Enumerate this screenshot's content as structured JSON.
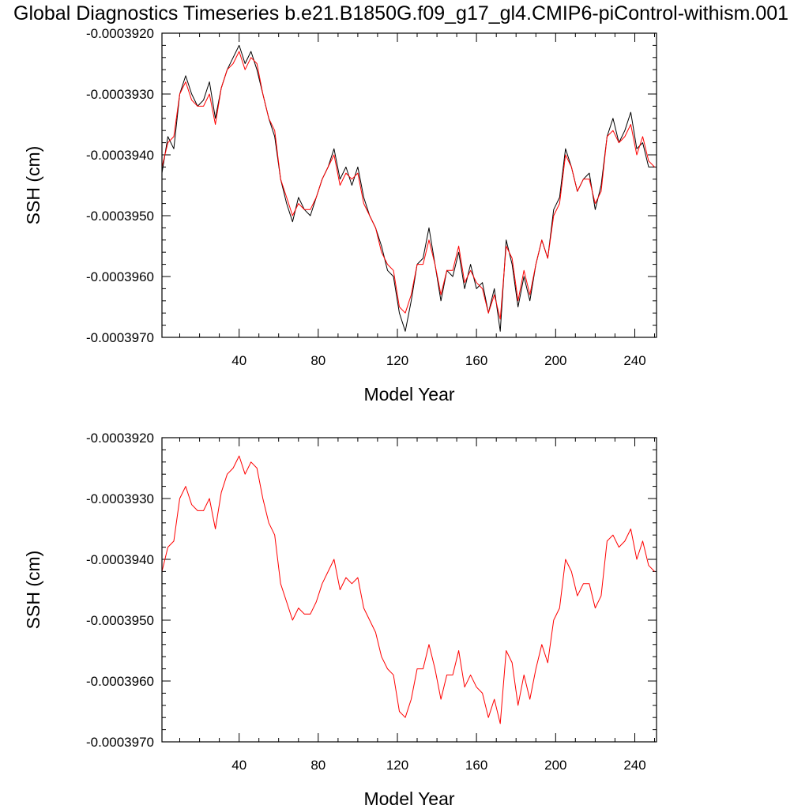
{
  "title": "Global Diagnostics Timeseries b.e21.B1850G.f09_g17_gl4.CMIP6-piControl-withism.001",
  "chart_data": [
    {
      "type": "line",
      "xlabel": "Model Year",
      "ylabel": "SSH (cm)",
      "xlim": [
        1,
        251
      ],
      "ylim": [
        -0.000397,
        -0.000392
      ],
      "xticks": [
        40,
        80,
        120,
        160,
        200,
        240
      ],
      "xtick_labels": [
        "40",
        "80",
        "120",
        "160",
        "200",
        "240"
      ],
      "yticks": [
        -0.000397,
        -0.000396,
        -0.000395,
        -0.000394,
        -0.000393,
        -0.000392
      ],
      "ytick_labels": [
        "-0.0003970",
        "-0.0003960",
        "-0.0003950",
        "-0.0003940",
        "-0.0003930",
        "-0.0003920"
      ],
      "grid": false,
      "series": [
        {
          "color": "#000000",
          "style": "monthly",
          "x": [
            1,
            4,
            7,
            10,
            13,
            16,
            19,
            22,
            25,
            28,
            31,
            34,
            37,
            40,
            43,
            46,
            49,
            52,
            55,
            58,
            61,
            64,
            67,
            70,
            73,
            76,
            79,
            82,
            85,
            88,
            91,
            94,
            97,
            100,
            103,
            106,
            109,
            112,
            115,
            118,
            121,
            124,
            127,
            130,
            133,
            136,
            139,
            142,
            145,
            148,
            151,
            154,
            157,
            160,
            163,
            166,
            169,
            172,
            175,
            178,
            181,
            184,
            187,
            190,
            193,
            196,
            199,
            202,
            205,
            208,
            211,
            214,
            217,
            220,
            223,
            226,
            229,
            232,
            235,
            238,
            241,
            244,
            247,
            250
          ],
          "values": [
            -0.0003943,
            -0.0003937,
            -0.0003939,
            -0.000393,
            -0.0003927,
            -0.000393,
            -0.0003932,
            -0.0003931,
            -0.0003928,
            -0.0003934,
            -0.0003929,
            -0.0003926,
            -0.0003924,
            -0.0003922,
            -0.0003925,
            -0.0003923,
            -0.0003926,
            -0.000393,
            -0.0003934,
            -0.0003937,
            -0.0003944,
            -0.0003948,
            -0.0003951,
            -0.0003947,
            -0.0003949,
            -0.000395,
            -0.0003947,
            -0.0003944,
            -0.0003942,
            -0.0003939,
            -0.0003944,
            -0.0003942,
            -0.0003945,
            -0.0003942,
            -0.0003947,
            -0.000395,
            -0.0003952,
            -0.0003955,
            -0.0003959,
            -0.000396,
            -0.0003966,
            -0.0003969,
            -0.0003964,
            -0.0003958,
            -0.0003957,
            -0.0003952,
            -0.0003958,
            -0.0003964,
            -0.0003959,
            -0.000396,
            -0.0003956,
            -0.0003962,
            -0.0003958,
            -0.0003962,
            -0.0003961,
            -0.0003966,
            -0.0003962,
            -0.0003969,
            -0.0003954,
            -0.0003958,
            -0.0003965,
            -0.000396,
            -0.0003964,
            -0.0003958,
            -0.0003954,
            -0.0003957,
            -0.0003949,
            -0.0003947,
            -0.0003939,
            -0.0003942,
            -0.0003946,
            -0.0003944,
            -0.0003943,
            -0.0003949,
            -0.0003945,
            -0.0003937,
            -0.0003934,
            -0.0003938,
            -0.0003936,
            -0.0003933,
            -0.0003939,
            -0.0003938,
            -0.0003942,
            -0.0003942
          ]
        },
        {
          "color": "#ff0000",
          "style": "annual",
          "x": [
            1,
            4,
            7,
            10,
            13,
            16,
            19,
            22,
            25,
            28,
            31,
            34,
            37,
            40,
            43,
            46,
            49,
            52,
            55,
            58,
            61,
            64,
            67,
            70,
            73,
            76,
            79,
            82,
            85,
            88,
            91,
            94,
            97,
            100,
            103,
            106,
            109,
            112,
            115,
            118,
            121,
            124,
            127,
            130,
            133,
            136,
            139,
            142,
            145,
            148,
            151,
            154,
            157,
            160,
            163,
            166,
            169,
            172,
            175,
            178,
            181,
            184,
            187,
            190,
            193,
            196,
            199,
            202,
            205,
            208,
            211,
            214,
            217,
            220,
            223,
            226,
            229,
            232,
            235,
            238,
            241,
            244,
            247,
            250
          ],
          "values": [
            -0.0003942,
            -0.0003938,
            -0.0003937,
            -0.000393,
            -0.0003928,
            -0.0003931,
            -0.0003932,
            -0.0003932,
            -0.000393,
            -0.0003935,
            -0.0003929,
            -0.0003926,
            -0.0003925,
            -0.0003923,
            -0.0003926,
            -0.0003924,
            -0.0003925,
            -0.000393,
            -0.0003934,
            -0.0003936,
            -0.0003944,
            -0.0003947,
            -0.000395,
            -0.0003948,
            -0.0003949,
            -0.0003949,
            -0.0003947,
            -0.0003944,
            -0.0003942,
            -0.000394,
            -0.0003945,
            -0.0003943,
            -0.0003944,
            -0.0003943,
            -0.0003948,
            -0.000395,
            -0.0003952,
            -0.0003956,
            -0.0003958,
            -0.0003959,
            -0.0003965,
            -0.0003966,
            -0.0003963,
            -0.0003958,
            -0.0003958,
            -0.0003954,
            -0.0003958,
            -0.0003963,
            -0.0003959,
            -0.0003959,
            -0.0003955,
            -0.0003961,
            -0.0003959,
            -0.0003961,
            -0.0003962,
            -0.0003966,
            -0.0003963,
            -0.0003967,
            -0.0003955,
            -0.0003957,
            -0.0003964,
            -0.0003959,
            -0.0003963,
            -0.0003958,
            -0.0003954,
            -0.0003957,
            -0.000395,
            -0.0003948,
            -0.000394,
            -0.0003942,
            -0.0003946,
            -0.0003944,
            -0.0003944,
            -0.0003948,
            -0.0003946,
            -0.0003937,
            -0.0003936,
            -0.0003938,
            -0.0003937,
            -0.0003935,
            -0.000394,
            -0.0003937,
            -0.0003941,
            -0.0003942
          ]
        }
      ]
    },
    {
      "type": "line",
      "xlabel": "Model Year",
      "ylabel": "SSH (cm)",
      "xlim": [
        1,
        251
      ],
      "ylim": [
        -0.000397,
        -0.000392
      ],
      "xticks": [
        40,
        80,
        120,
        160,
        200,
        240
      ],
      "xtick_labels": [
        "40",
        "80",
        "120",
        "160",
        "200",
        "240"
      ],
      "yticks": [
        -0.000397,
        -0.000396,
        -0.000395,
        -0.000394,
        -0.000393,
        -0.000392
      ],
      "ytick_labels": [
        "-0.0003970",
        "-0.0003960",
        "-0.0003950",
        "-0.0003940",
        "-0.0003930",
        "-0.0003920"
      ],
      "grid": false,
      "series": [
        {
          "color": "#ff0000",
          "style": "annual",
          "x": [
            1,
            4,
            7,
            10,
            13,
            16,
            19,
            22,
            25,
            28,
            31,
            34,
            37,
            40,
            43,
            46,
            49,
            52,
            55,
            58,
            61,
            64,
            67,
            70,
            73,
            76,
            79,
            82,
            85,
            88,
            91,
            94,
            97,
            100,
            103,
            106,
            109,
            112,
            115,
            118,
            121,
            124,
            127,
            130,
            133,
            136,
            139,
            142,
            145,
            148,
            151,
            154,
            157,
            160,
            163,
            166,
            169,
            172,
            175,
            178,
            181,
            184,
            187,
            190,
            193,
            196,
            199,
            202,
            205,
            208,
            211,
            214,
            217,
            220,
            223,
            226,
            229,
            232,
            235,
            238,
            241,
            244,
            247,
            250
          ],
          "values": [
            -0.0003942,
            -0.0003938,
            -0.0003937,
            -0.000393,
            -0.0003928,
            -0.0003931,
            -0.0003932,
            -0.0003932,
            -0.000393,
            -0.0003935,
            -0.0003929,
            -0.0003926,
            -0.0003925,
            -0.0003923,
            -0.0003926,
            -0.0003924,
            -0.0003925,
            -0.000393,
            -0.0003934,
            -0.0003936,
            -0.0003944,
            -0.0003947,
            -0.000395,
            -0.0003948,
            -0.0003949,
            -0.0003949,
            -0.0003947,
            -0.0003944,
            -0.0003942,
            -0.000394,
            -0.0003945,
            -0.0003943,
            -0.0003944,
            -0.0003943,
            -0.0003948,
            -0.000395,
            -0.0003952,
            -0.0003956,
            -0.0003958,
            -0.0003959,
            -0.0003965,
            -0.0003966,
            -0.0003963,
            -0.0003958,
            -0.0003958,
            -0.0003954,
            -0.0003958,
            -0.0003963,
            -0.0003959,
            -0.0003959,
            -0.0003955,
            -0.0003961,
            -0.0003959,
            -0.0003961,
            -0.0003962,
            -0.0003966,
            -0.0003963,
            -0.0003967,
            -0.0003955,
            -0.0003957,
            -0.0003964,
            -0.0003959,
            -0.0003963,
            -0.0003958,
            -0.0003954,
            -0.0003957,
            -0.000395,
            -0.0003948,
            -0.000394,
            -0.0003942,
            -0.0003946,
            -0.0003944,
            -0.0003944,
            -0.0003948,
            -0.0003946,
            -0.0003937,
            -0.0003936,
            -0.0003938,
            -0.0003937,
            -0.0003935,
            -0.000394,
            -0.0003937,
            -0.0003941,
            -0.0003942
          ]
        }
      ]
    }
  ]
}
